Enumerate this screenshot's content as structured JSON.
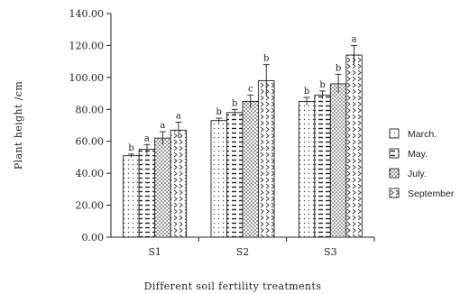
{
  "chart_data": {
    "type": "bar",
    "title": "",
    "xlabel": "Different soil fertility treatments",
    "ylabel": "Plant height /cm",
    "ylim": [
      0,
      140
    ],
    "yticks": [
      "0.00",
      "20.00",
      "40.00",
      "60.00",
      "80.00",
      "100.00",
      "120.00",
      "140.00"
    ],
    "categories": [
      "S1",
      "S2",
      "S3"
    ],
    "legend_position": "right",
    "grid": false,
    "series": [
      {
        "name": "March.",
        "pattern": "dots",
        "values": [
          51,
          73,
          85
        ],
        "errors": [
          1,
          1.5,
          2.5
        ],
        "labels": [
          "b",
          "b",
          "b"
        ]
      },
      {
        "name": "May.",
        "pattern": "dashes",
        "values": [
          55,
          78,
          89
        ],
        "errors": [
          3,
          2,
          2.5
        ],
        "labels": [
          "a",
          "b",
          "b"
        ]
      },
      {
        "name": "July.",
        "pattern": "dense",
        "values": [
          62,
          85,
          96
        ],
        "errors": [
          4,
          4,
          6
        ],
        "labels": [
          "a",
          "c",
          "b"
        ]
      },
      {
        "name": "September",
        "pattern": "chevrons",
        "values": [
          67,
          98,
          114
        ],
        "errors": [
          5,
          10,
          6
        ],
        "labels": [
          "a",
          "b",
          "a"
        ]
      }
    ]
  }
}
